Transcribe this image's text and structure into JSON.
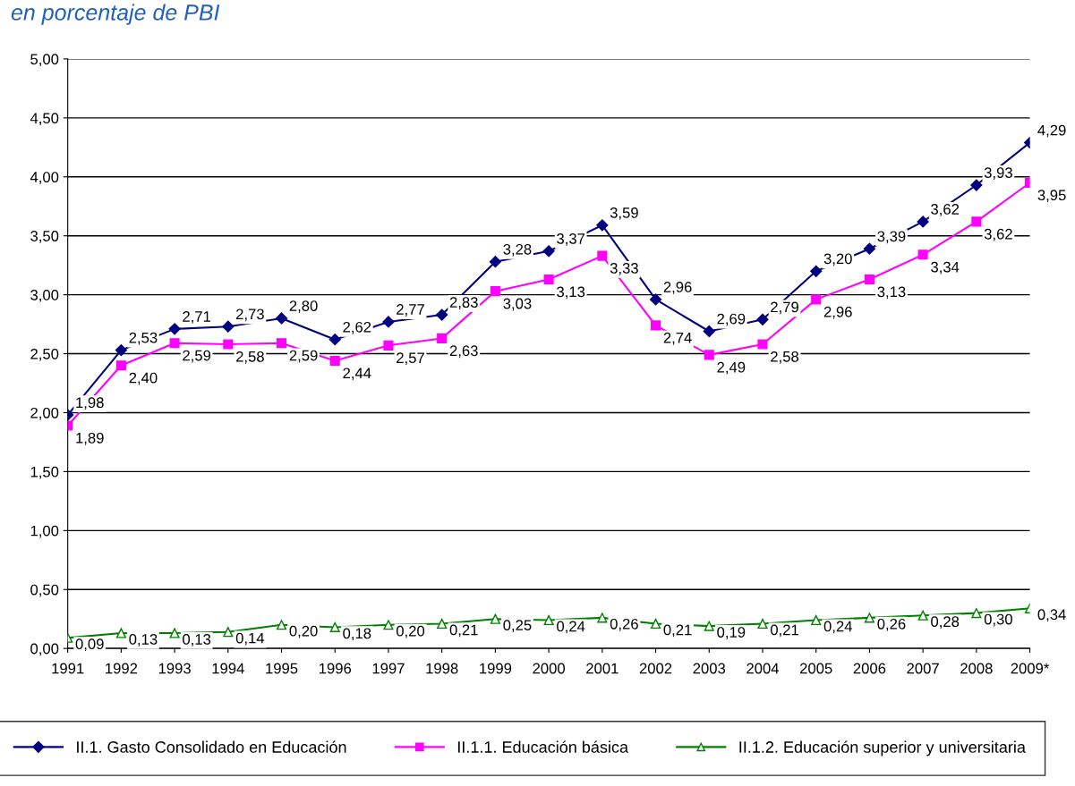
{
  "chart_data": {
    "type": "line",
    "title": "en porcentaje de PBI",
    "categories": [
      "1991",
      "1992",
      "1993",
      "1994",
      "1995",
      "1996",
      "1997",
      "1998",
      "1999",
      "2000",
      "2001",
      "2002",
      "2003",
      "2004",
      "2005",
      "2006",
      "2007",
      "2008",
      "2009*"
    ],
    "series": [
      {
        "name": "II.1. Gasto Consolidado en Educación",
        "color": "#000080",
        "marker": "diamond",
        "values": [
          1.98,
          2.53,
          2.71,
          2.73,
          2.8,
          2.62,
          2.77,
          2.83,
          3.28,
          3.37,
          3.59,
          2.96,
          2.69,
          2.79,
          3.2,
          3.39,
          3.62,
          3.93,
          4.29
        ],
        "value_labels": [
          "1,98",
          "2,53",
          "2,71",
          "2,73",
          "2,80",
          "2,62",
          "2,77",
          "2,83",
          "3,28",
          "3,37",
          "3,59",
          "2,96",
          "2,69",
          "2,79",
          "3,20",
          "3,39",
          "3,62",
          "3,93",
          "4,29"
        ]
      },
      {
        "name": "II.1.1. Educación básica",
        "color": "#ff00ff",
        "marker": "square",
        "values": [
          1.89,
          2.4,
          2.59,
          2.58,
          2.59,
          2.44,
          2.57,
          2.63,
          3.03,
          3.13,
          3.33,
          2.74,
          2.49,
          2.58,
          2.96,
          3.13,
          3.34,
          3.62,
          3.95
        ],
        "value_labels": [
          "1,89",
          "2,40",
          "2,59",
          "2,58",
          "2,59",
          "2,44",
          "2,57",
          "2,63",
          "3,03",
          "3,13",
          "3,33",
          "2,74",
          "2,49",
          "2,58",
          "2,96",
          "3,13",
          "3,34",
          "3,62",
          "3,95"
        ]
      },
      {
        "name": "II.1.2. Educación superior y universitaria",
        "color": "#008000",
        "marker": "triangle",
        "values": [
          0.09,
          0.13,
          0.13,
          0.14,
          0.2,
          0.18,
          0.2,
          0.21,
          0.25,
          0.24,
          0.26,
          0.21,
          0.19,
          0.21,
          0.24,
          0.26,
          0.28,
          0.3,
          0.34
        ],
        "value_labels": [
          "0,09",
          "0,13",
          "0,13",
          "0,14",
          "0,20",
          "0,18",
          "0,20",
          "0,21",
          "0,25",
          "0,24",
          "0,26",
          "0,21",
          "0,19",
          "0,21",
          "0,24",
          "0,26",
          "0,28",
          "0,30",
          "0,34"
        ]
      }
    ],
    "ylim": [
      0,
      5
    ],
    "yticks": [
      {
        "value": 0,
        "label": "0,00"
      },
      {
        "value": 0.5,
        "label": "0,50"
      },
      {
        "value": 1,
        "label": "1,00"
      },
      {
        "value": 1.5,
        "label": "1,50"
      },
      {
        "value": 2,
        "label": "2,00"
      },
      {
        "value": 2.5,
        "label": "2,50"
      },
      {
        "value": 3,
        "label": "3,00"
      },
      {
        "value": 3.5,
        "label": "3,50"
      },
      {
        "value": 4,
        "label": "4,00"
      },
      {
        "value": 4.5,
        "label": "4,50"
      },
      {
        "value": 5,
        "label": "5,00"
      }
    ],
    "grid": "y",
    "legend": "bottom"
  }
}
